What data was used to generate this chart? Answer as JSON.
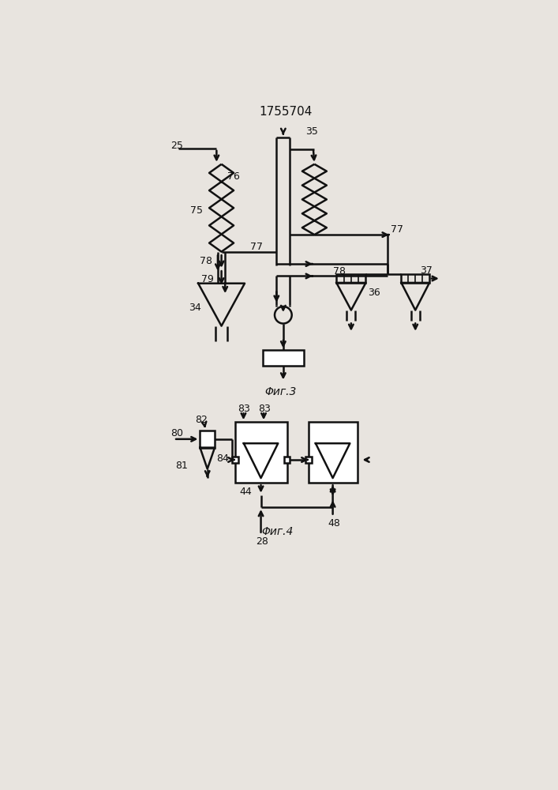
{
  "title": "1755704",
  "fig3_label": "Φиг.3",
  "fig4_label": "Φиг.4",
  "bg_color": "#e8e4df",
  "line_color": "#111111",
  "font_size_title": 11,
  "font_size_label": 10,
  "font_size_num": 9,
  "lw_main": 1.8,
  "lw_thin": 1.2
}
